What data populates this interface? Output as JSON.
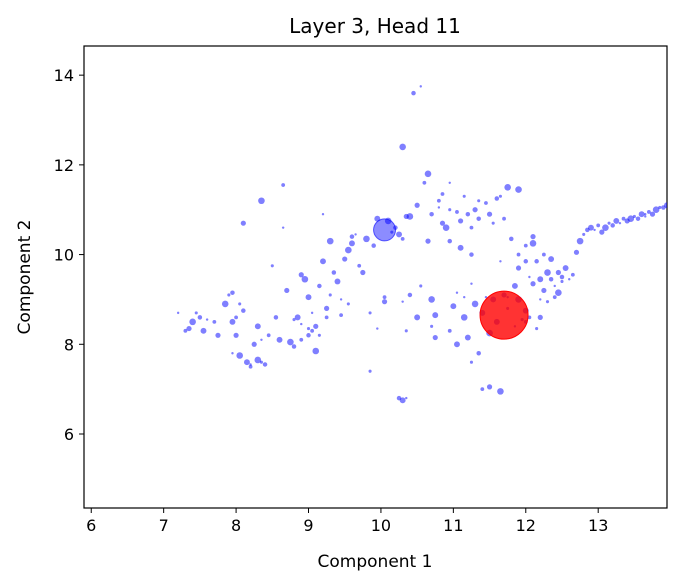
{
  "chart_data": {
    "type": "scatter",
    "title": "Layer 3, Head 11",
    "xlabel": "Component 1",
    "ylabel": "Component 2",
    "xlim": [
      5.9,
      13.95
    ],
    "ylim": [
      4.35,
      14.65
    ],
    "xticks": [
      "6",
      "7",
      "8",
      "9",
      "10",
      "11",
      "12",
      "13"
    ],
    "yticks": [
      "6",
      "8",
      "10",
      "12",
      "14"
    ],
    "grid": false,
    "colors": {
      "points": "#0000ff",
      "highlight": "#ff0000",
      "marked": "#0000ff"
    },
    "series": [
      {
        "role": "points",
        "points": [
          [
            7.2,
            8.7
          ],
          [
            7.3,
            8.3
          ],
          [
            7.35,
            8.35
          ],
          [
            7.4,
            8.5
          ],
          [
            7.45,
            8.7
          ],
          [
            7.5,
            8.6
          ],
          [
            7.55,
            8.3
          ],
          [
            7.6,
            8.55
          ],
          [
            7.7,
            8.5
          ],
          [
            7.75,
            8.2
          ],
          [
            7.85,
            8.9
          ],
          [
            7.9,
            9.1
          ],
          [
            7.95,
            9.15
          ],
          [
            7.95,
            8.5
          ],
          [
            7.95,
            7.8
          ],
          [
            8.0,
            8.6
          ],
          [
            8.0,
            8.2
          ],
          [
            8.05,
            7.75
          ],
          [
            8.05,
            8.9
          ],
          [
            8.1,
            8.75
          ],
          [
            8.15,
            7.6
          ],
          [
            8.2,
            7.55
          ],
          [
            8.2,
            7.5
          ],
          [
            8.25,
            8.0
          ],
          [
            8.3,
            7.65
          ],
          [
            8.35,
            7.6
          ],
          [
            8.4,
            7.55
          ],
          [
            8.3,
            8.4
          ],
          [
            8.35,
            8.1
          ],
          [
            8.45,
            8.2
          ],
          [
            8.1,
            10.7
          ],
          [
            8.35,
            11.2
          ],
          [
            8.5,
            9.75
          ],
          [
            8.55,
            8.6
          ],
          [
            8.6,
            8.1
          ],
          [
            8.65,
            10.6
          ],
          [
            8.65,
            11.55
          ],
          [
            8.7,
            9.2
          ],
          [
            8.75,
            8.05
          ],
          [
            8.8,
            8.55
          ],
          [
            8.8,
            7.95
          ],
          [
            8.85,
            8.6
          ],
          [
            8.9,
            8.45
          ],
          [
            8.9,
            8.1
          ],
          [
            8.9,
            9.55
          ],
          [
            8.95,
            9.45
          ],
          [
            9.0,
            8.35
          ],
          [
            9.0,
            8.2
          ],
          [
            9.0,
            9.05
          ],
          [
            9.05,
            8.7
          ],
          [
            9.05,
            8.3
          ],
          [
            9.1,
            8.4
          ],
          [
            9.1,
            7.85
          ],
          [
            9.15,
            8.2
          ],
          [
            9.15,
            9.3
          ],
          [
            9.2,
            9.85
          ],
          [
            9.2,
            10.9
          ],
          [
            9.25,
            8.6
          ],
          [
            9.25,
            8.8
          ],
          [
            9.3,
            10.3
          ],
          [
            9.3,
            9.1
          ],
          [
            9.35,
            9.6
          ],
          [
            9.4,
            9.4
          ],
          [
            9.45,
            9.0
          ],
          [
            9.45,
            8.65
          ],
          [
            9.5,
            9.9
          ],
          [
            9.55,
            10.1
          ],
          [
            9.55,
            8.9
          ],
          [
            9.6,
            10.4
          ],
          [
            9.6,
            10.25
          ],
          [
            9.65,
            10.45
          ],
          [
            9.7,
            9.75
          ],
          [
            9.75,
            9.6
          ],
          [
            9.8,
            10.35
          ],
          [
            9.85,
            8.7
          ],
          [
            9.9,
            10.2
          ],
          [
            9.95,
            10.8
          ],
          [
            9.95,
            8.35
          ],
          [
            10.05,
            9.05
          ],
          [
            10.05,
            8.95
          ],
          [
            10.1,
            10.75
          ],
          [
            10.15,
            10.5
          ],
          [
            10.2,
            10.6
          ],
          [
            10.25,
            10.45
          ],
          [
            10.3,
            8.95
          ],
          [
            10.3,
            10.35
          ],
          [
            10.35,
            10.85
          ],
          [
            10.3,
            12.4
          ],
          [
            10.35,
            8.3
          ],
          [
            10.45,
            13.6
          ],
          [
            10.5,
            8.6
          ],
          [
            10.55,
            13.75
          ],
          [
            10.6,
            11.6
          ],
          [
            10.65,
            10.3
          ],
          [
            10.65,
            11.8
          ],
          [
            10.7,
            8.4
          ],
          [
            10.7,
            10.9
          ],
          [
            10.75,
            8.65
          ],
          [
            10.8,
            11.05
          ],
          [
            10.85,
            11.35
          ],
          [
            10.85,
            10.7
          ],
          [
            10.9,
            10.6
          ],
          [
            10.95,
            11.0
          ],
          [
            10.95,
            10.3
          ],
          [
            11.0,
            8.85
          ],
          [
            11.05,
            9.15
          ],
          [
            11.05,
            10.95
          ],
          [
            11.1,
            10.75
          ],
          [
            11.15,
            8.6
          ],
          [
            11.15,
            11.3
          ],
          [
            11.2,
            10.9
          ],
          [
            11.2,
            8.15
          ],
          [
            11.25,
            9.35
          ],
          [
            11.25,
            10.6
          ],
          [
            11.3,
            11.0
          ],
          [
            11.3,
            8.9
          ],
          [
            11.35,
            11.2
          ],
          [
            11.35,
            10.8
          ],
          [
            11.4,
            8.7
          ],
          [
            11.45,
            9.05
          ],
          [
            11.45,
            11.15
          ],
          [
            11.5,
            10.9
          ],
          [
            11.5,
            8.25
          ],
          [
            11.55,
            10.7
          ],
          [
            11.6,
            11.25
          ],
          [
            11.6,
            8.5
          ],
          [
            11.65,
            9.85
          ],
          [
            11.7,
            10.8
          ],
          [
            11.7,
            9.1
          ],
          [
            11.75,
            11.5
          ],
          [
            11.75,
            8.8
          ],
          [
            11.8,
            10.35
          ],
          [
            11.85,
            9.3
          ],
          [
            11.85,
            8.4
          ],
          [
            11.9,
            10.0
          ],
          [
            11.9,
            9.7
          ],
          [
            11.9,
            9.0
          ],
          [
            11.95,
            8.55
          ],
          [
            12.0,
            9.85
          ],
          [
            12.0,
            8.75
          ],
          [
            12.05,
            9.5
          ],
          [
            12.05,
            8.6
          ],
          [
            12.1,
            9.35
          ],
          [
            12.1,
            10.25
          ],
          [
            12.15,
            8.35
          ],
          [
            12.15,
            9.85
          ],
          [
            12.2,
            9.45
          ],
          [
            12.2,
            9.0
          ],
          [
            12.25,
            10.0
          ],
          [
            12.25,
            9.2
          ],
          [
            12.3,
            9.6
          ],
          [
            12.3,
            8.95
          ],
          [
            12.35,
            9.45
          ],
          [
            12.35,
            9.9
          ],
          [
            12.4,
            9.3
          ],
          [
            12.4,
            9.05
          ],
          [
            12.45,
            9.6
          ],
          [
            12.45,
            9.15
          ],
          [
            12.5,
            9.4
          ],
          [
            12.5,
            9.5
          ],
          [
            12.55,
            9.7
          ],
          [
            12.6,
            9.45
          ],
          [
            12.65,
            9.55
          ],
          [
            12.7,
            10.05
          ],
          [
            12.75,
            10.3
          ],
          [
            12.8,
            10.45
          ],
          [
            12.85,
            10.55
          ],
          [
            12.9,
            10.6
          ],
          [
            12.95,
            10.55
          ],
          [
            13.0,
            10.65
          ],
          [
            13.05,
            10.5
          ],
          [
            13.1,
            10.6
          ],
          [
            13.15,
            10.7
          ],
          [
            13.2,
            10.65
          ],
          [
            13.25,
            10.75
          ],
          [
            13.3,
            10.7
          ],
          [
            13.35,
            10.8
          ],
          [
            13.4,
            10.75
          ],
          [
            13.45,
            10.8
          ],
          [
            13.5,
            10.85
          ],
          [
            13.55,
            10.8
          ],
          [
            13.6,
            10.9
          ],
          [
            13.65,
            10.85
          ],
          [
            13.7,
            10.95
          ],
          [
            13.75,
            10.9
          ],
          [
            13.8,
            11.0
          ],
          [
            13.85,
            11.05
          ],
          [
            13.9,
            11.05
          ],
          [
            13.95,
            11.1
          ],
          [
            13.65,
            10.9
          ],
          [
            12.0,
            10.2
          ],
          [
            12.1,
            10.4
          ],
          [
            11.9,
            11.45
          ],
          [
            11.65,
            11.3
          ],
          [
            11.25,
            10.0
          ],
          [
            11.1,
            10.15
          ],
          [
            10.95,
            11.6
          ],
          [
            10.8,
            11.2
          ],
          [
            10.5,
            11.1
          ],
          [
            10.4,
            10.85
          ],
          [
            9.85,
            7.4
          ],
          [
            10.25,
            6.8
          ],
          [
            10.3,
            6.75
          ],
          [
            10.35,
            6.8
          ],
          [
            11.4,
            7.0
          ],
          [
            11.5,
            7.05
          ],
          [
            11.65,
            6.95
          ],
          [
            11.25,
            7.6
          ],
          [
            11.35,
            7.8
          ],
          [
            11.05,
            8.0
          ],
          [
            11.15,
            9.05
          ],
          [
            10.95,
            8.3
          ],
          [
            10.75,
            8.15
          ],
          [
            10.7,
            9.0
          ],
          [
            10.55,
            9.3
          ],
          [
            10.4,
            9.1
          ],
          [
            11.55,
            9.0
          ],
          [
            11.75,
            9.05
          ],
          [
            12.0,
            8.5
          ],
          [
            12.2,
            8.6
          ]
        ]
      },
      {
        "role": "highlight",
        "points": [
          [
            11.7,
            8.65
          ]
        ]
      },
      {
        "role": "marked",
        "points": [
          [
            10.05,
            10.55
          ]
        ]
      }
    ]
  }
}
